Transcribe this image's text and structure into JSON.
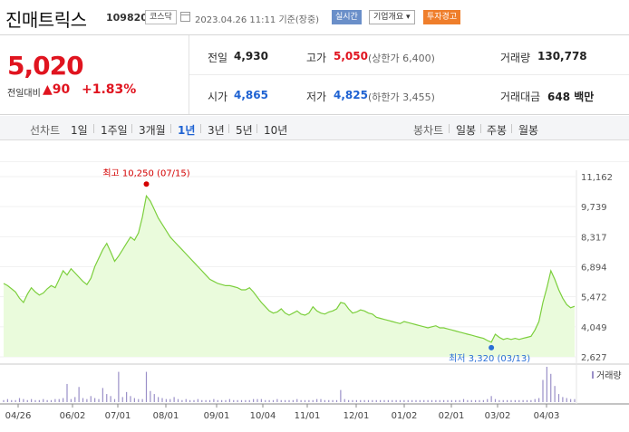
{
  "stock": {
    "name": "진매트릭스",
    "code": "109820",
    "market": "코스닥",
    "datetime": "2023.04.26 11:11",
    "basis": "기준(장중)",
    "btn_live": "실시간",
    "btn_info": "기업개요 ▾",
    "btn_warn": "투자경고"
  },
  "quote": {
    "price": "5,020",
    "change_label": "전일대비",
    "change_amount": "▲90",
    "change_pct": "+1.83%",
    "prev_label": "전일",
    "prev_value": "4,930",
    "high_label": "고가",
    "high_value": "5,050",
    "high_limit": "(상한가 6,400)",
    "volume_label": "거래량",
    "volume_value": "130,778",
    "open_label": "시가",
    "open_value": "4,865",
    "low_label": "저가",
    "low_value": "4,825",
    "low_limit": "(하한가 3,455)",
    "amount_label": "거래대금",
    "amount_value": "648 백만"
  },
  "toolbar": {
    "line_label": "선차트",
    "periods": [
      "1일",
      "1주일",
      "3개월",
      "1년",
      "3년",
      "5년",
      "10년"
    ],
    "active_period": "1년",
    "candle_label": "봉차트",
    "candles": [
      "일봉",
      "주봉",
      "월봉"
    ]
  },
  "chart_data": {
    "type": "area",
    "x_tick_labels": [
      "04/26",
      "06/02",
      "07/01",
      "08/01",
      "09/01",
      "10/04",
      "11/01",
      "12/01",
      "01/02",
      "02/01",
      "03/02",
      "04/03"
    ],
    "y_tick_labels": [
      "11,162",
      "9,739",
      "8,317",
      "6,894",
      "5,472",
      "4,049",
      "2,627"
    ],
    "ylim": [
      2627,
      11162
    ],
    "high_annotation": "최고 10,250 (07/15)",
    "low_annotation": "최저 3,320 (03/13)",
    "volume_label": "거래량",
    "line_color": "#7ccf3d",
    "fill_color": "#eafbdc",
    "high_color": "#d40000",
    "low_color": "#2a6fd6",
    "price": [
      6100,
      6000,
      5850,
      5700,
      5400,
      5200,
      5600,
      5900,
      5700,
      5550,
      5650,
      5850,
      6000,
      5900,
      6300,
      6700,
      6500,
      6800,
      6600,
      6400,
      6200,
      6050,
      6350,
      6900,
      7300,
      7700,
      8000,
      7600,
      7150,
      7400,
      7700,
      8000,
      8300,
      8150,
      8500,
      9250,
      10250,
      10000,
      9600,
      9200,
      8900,
      8600,
      8300,
      8100,
      7900,
      7700,
      7500,
      7300,
      7100,
      6900,
      6700,
      6500,
      6300,
      6200,
      6100,
      6050,
      6000,
      6000,
      5950,
      5900,
      5800,
      5800,
      5900,
      5700,
      5450,
      5200,
      5000,
      4800,
      4700,
      4750,
      4900,
      4700,
      4600,
      4700,
      4800,
      4650,
      4600,
      4700,
      5000,
      4800,
      4700,
      4650,
      4750,
      4800,
      4900,
      5200,
      5150,
      4900,
      4700,
      4750,
      4850,
      4800,
      4700,
      4650,
      4500,
      4450,
      4400,
      4350,
      4300,
      4250,
      4200,
      4300,
      4250,
      4200,
      4150,
      4100,
      4050,
      4000,
      4050,
      4100,
      4000,
      4000,
      3950,
      3900,
      3850,
      3800,
      3750,
      3700,
      3650,
      3600,
      3550,
      3500,
      3400,
      3320,
      3700,
      3550,
      3450,
      3500,
      3450,
      3500,
      3450,
      3500,
      3550,
      3600,
      3900,
      4300,
      5200,
      5900,
      6700,
      6300,
      5800,
      5400,
      5100,
      4950,
      5020
    ],
    "volume": [
      2,
      3,
      2,
      2,
      4,
      3,
      2,
      3,
      2,
      2,
      3,
      2,
      2,
      3,
      3,
      4,
      18,
      3,
      5,
      15,
      4,
      3,
      6,
      4,
      3,
      14,
      8,
      6,
      3,
      30,
      5,
      10,
      6,
      4,
      3,
      3,
      30,
      11,
      8,
      5,
      4,
      3,
      3,
      5,
      3,
      2,
      3,
      2,
      2,
      3,
      2,
      2,
      2,
      3,
      2,
      2,
      2,
      3,
      2,
      2,
      2,
      2,
      2,
      3,
      3,
      3,
      2,
      2,
      2,
      3,
      2,
      2,
      2,
      2,
      3,
      2,
      2,
      2,
      2,
      3,
      3,
      2,
      2,
      2,
      2,
      12,
      3,
      2,
      2,
      2,
      2,
      2,
      2,
      2,
      2,
      2,
      2,
      2,
      2,
      2,
      2,
      2,
      2,
      2,
      2,
      2,
      2,
      2,
      2,
      2,
      2,
      2,
      2,
      2,
      2,
      2,
      3,
      2,
      2,
      2,
      2,
      2,
      3,
      6,
      3,
      2,
      2,
      2,
      2,
      2,
      2,
      2,
      2,
      2,
      3,
      4,
      22,
      35,
      28,
      16,
      8,
      5,
      4,
      3,
      3
    ]
  }
}
